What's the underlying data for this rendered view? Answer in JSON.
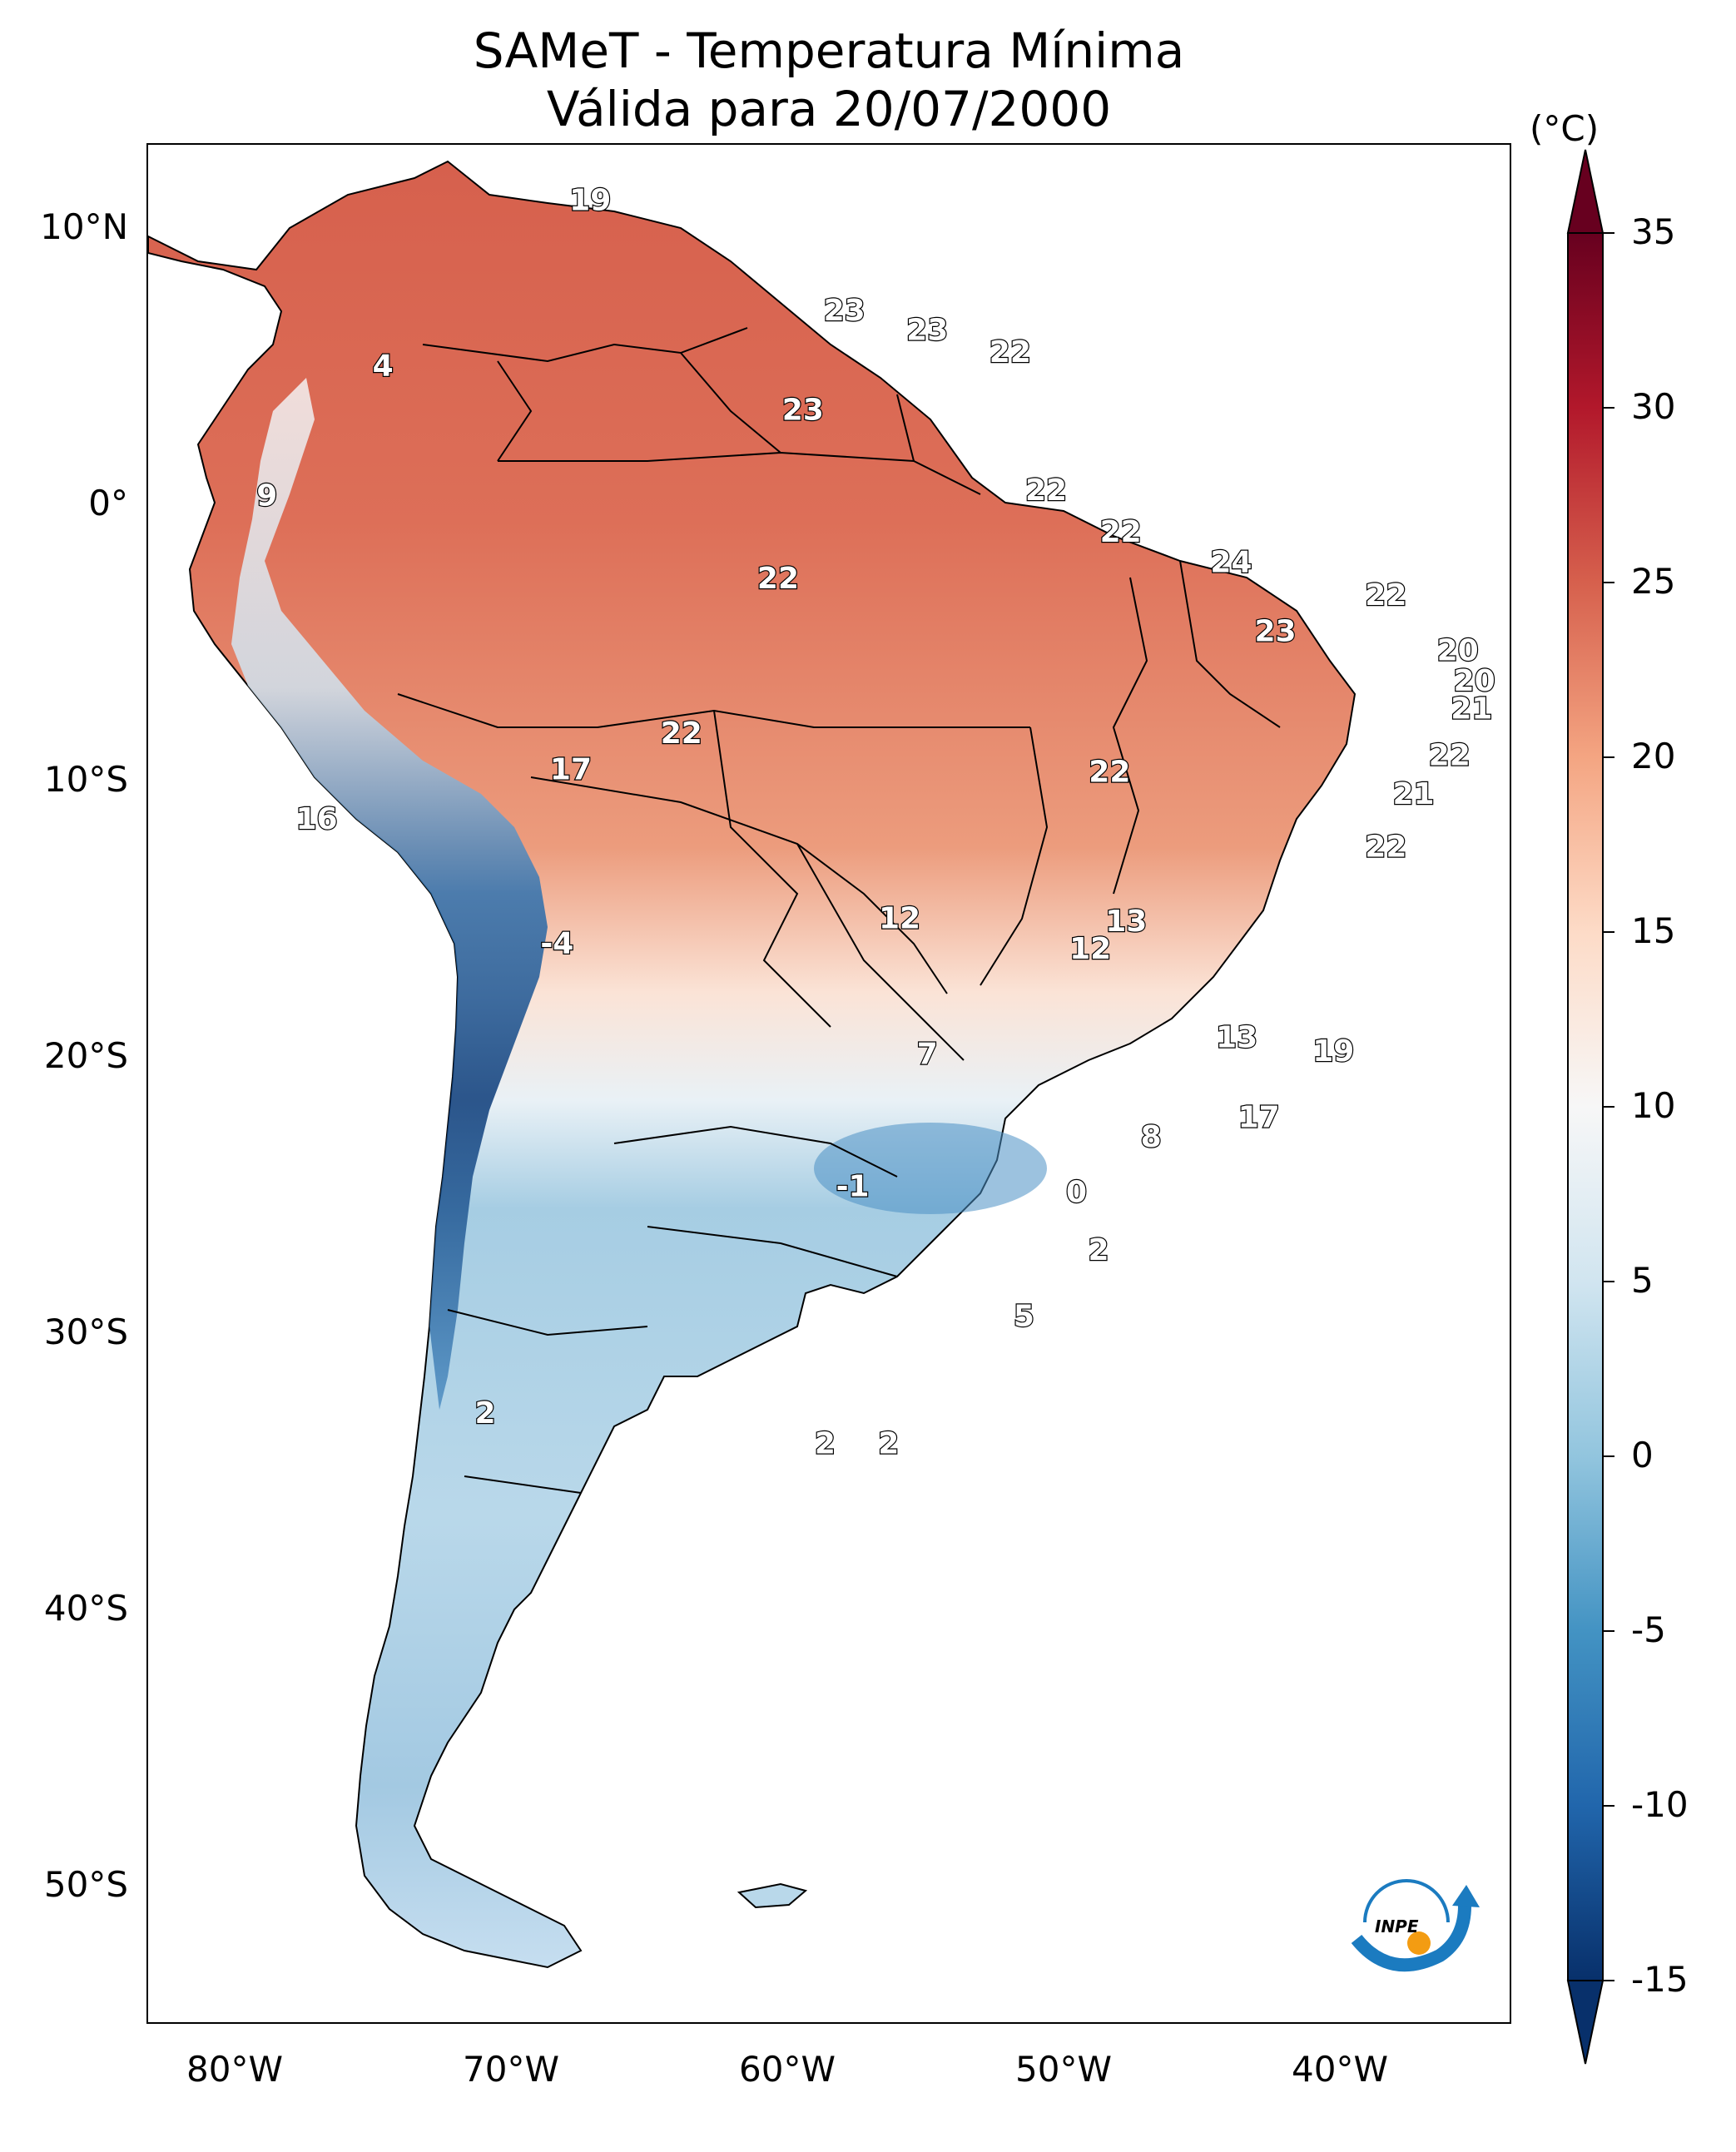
{
  "title": {
    "line1": "SAMeT - Temperatura Mínima",
    "line2": "Válida para 20/07/2000"
  },
  "axes": {
    "lon_ticks": [
      "80°W",
      "70°W",
      "60°W",
      "50°W",
      "40°W"
    ],
    "lat_ticks": [
      "10°N",
      "0°",
      "10°S",
      "20°S",
      "30°S",
      "40°S",
      "50°S"
    ]
  },
  "colorbar": {
    "unit": "(°C)",
    "ticks": [
      "35",
      "30",
      "25",
      "20",
      "15",
      "10",
      "5",
      "0",
      "-5",
      "-10",
      "-15"
    ],
    "range": [
      -15,
      35
    ],
    "colors": [
      "#08306b",
      "#2166ac",
      "#4393c3",
      "#92c5de",
      "#d1e5f0",
      "#f7f7f7",
      "#fddbc7",
      "#f4a582",
      "#d6604d",
      "#b2182b",
      "#67001f"
    ]
  },
  "station_values": [
    {
      "value": "19",
      "lon": -67,
      "lat": 10.5
    },
    {
      "value": "4",
      "lon": -74.5,
      "lat": 4.5
    },
    {
      "value": "23",
      "lon": -57.8,
      "lat": 6.5
    },
    {
      "value": "23",
      "lon": -54.8,
      "lat": 5.8
    },
    {
      "value": "22",
      "lon": -51.8,
      "lat": 5.0
    },
    {
      "value": "23",
      "lon": -59.3,
      "lat": 2.9
    },
    {
      "value": "9",
      "lon": -78.7,
      "lat": -0.2
    },
    {
      "value": "22",
      "lon": -50.5,
      "lat": 0.0
    },
    {
      "value": "22",
      "lon": -47.8,
      "lat": -1.5
    },
    {
      "value": "24",
      "lon": -43.8,
      "lat": -2.6
    },
    {
      "value": "22",
      "lon": -60.2,
      "lat": -3.2
    },
    {
      "value": "22",
      "lon": -38.2,
      "lat": -3.8
    },
    {
      "value": "23",
      "lon": -42.2,
      "lat": -5.1
    },
    {
      "value": "20",
      "lon": -35.6,
      "lat": -5.8
    },
    {
      "value": "20",
      "lon": -35.0,
      "lat": -6.9
    },
    {
      "value": "21",
      "lon": -35.1,
      "lat": -7.9
    },
    {
      "value": "22",
      "lon": -63.7,
      "lat": -8.8
    },
    {
      "value": "17",
      "lon": -67.7,
      "lat": -10.1
    },
    {
      "value": "22",
      "lon": -48.2,
      "lat": -10.2
    },
    {
      "value": "22",
      "lon": -35.9,
      "lat": -9.6
    },
    {
      "value": "21",
      "lon": -37.2,
      "lat": -11.0
    },
    {
      "value": "16",
      "lon": -76.9,
      "lat": -11.9
    },
    {
      "value": "22",
      "lon": -38.2,
      "lat": -12.9
    },
    {
      "value": "12",
      "lon": -55.8,
      "lat": -15.5
    },
    {
      "value": "13",
      "lon": -47.6,
      "lat": -15.6
    },
    {
      "value": "12",
      "lon": -48.9,
      "lat": -16.6
    },
    {
      "value": "-4",
      "lon": -68.2,
      "lat": -16.4
    },
    {
      "value": "13",
      "lon": -43.6,
      "lat": -19.8
    },
    {
      "value": "19",
      "lon": -40.1,
      "lat": -20.3
    },
    {
      "value": "7",
      "lon": -54.8,
      "lat": -20.4
    },
    {
      "value": "17",
      "lon": -42.8,
      "lat": -22.7
    },
    {
      "value": "8",
      "lon": -46.7,
      "lat": -23.4
    },
    {
      "value": "-1",
      "lon": -57.5,
      "lat": -25.2
    },
    {
      "value": "0",
      "lon": -49.4,
      "lat": -25.4
    },
    {
      "value": "2",
      "lon": -48.6,
      "lat": -27.5
    },
    {
      "value": "5",
      "lon": -51.3,
      "lat": -29.9
    },
    {
      "value": "2",
      "lon": -70.8,
      "lat": -33.4
    },
    {
      "value": "2",
      "lon": -58.5,
      "lat": -34.5
    },
    {
      "value": "2",
      "lon": -56.2,
      "lat": -34.5
    }
  ],
  "logo": {
    "text": "INPE"
  }
}
